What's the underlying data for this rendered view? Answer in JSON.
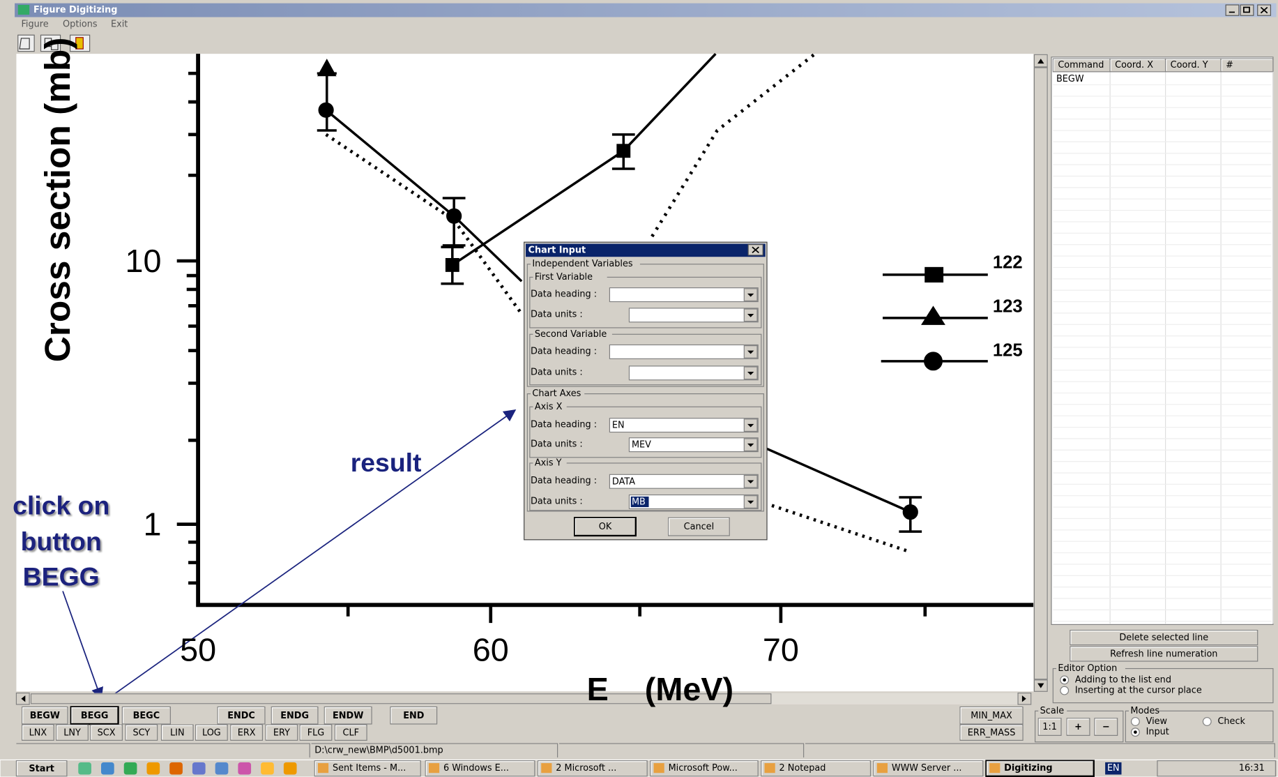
{
  "window": {
    "title": "Figure Digitizing",
    "menu": [
      "Figure",
      "Options",
      "Exit"
    ]
  },
  "figure": {
    "y_label": "Cross section (mb)",
    "y_ticks": [
      "10",
      "1"
    ],
    "x_ticks": [
      "50",
      "60",
      "70"
    ],
    "x_label": "E    (MeV)",
    "legend": [
      "122",
      "123",
      "125"
    ]
  },
  "annotations": {
    "result": "result",
    "click": [
      "click on",
      "button",
      "BEGG"
    ]
  },
  "dialog": {
    "title": "Chart Input",
    "independent": "Independent Variables",
    "first": "First Variable",
    "second": "Second Variable",
    "axes": "Chart Axes",
    "axis_x": "Axis X",
    "axis_y": "Axis Y",
    "heading_label": "Data heading :",
    "units_label": "Data units :",
    "x_heading": "EN",
    "x_units": "MEV",
    "y_heading": "DATA",
    "y_units": "MB",
    "ok": "OK",
    "cancel": "Cancel"
  },
  "table": {
    "columns": [
      "Command",
      "Coord. X",
      "Coord. Y",
      "#"
    ],
    "rows": [
      [
        "BEGW"
      ]
    ]
  },
  "side_buttons": [
    "Delete selected line",
    "Refresh line numeration"
  ],
  "editor_option": {
    "title": "Editor Option",
    "options": [
      "Adding to the list end",
      "Inserting at the cursor place"
    ]
  },
  "scale": {
    "title": "Scale",
    "buttons": [
      "1:1",
      "+",
      "−"
    ]
  },
  "modes": {
    "title": "Modes",
    "options": [
      "View",
      "Check",
      "Input"
    ]
  },
  "toolbar_row1": [
    "BEGW",
    "BEGG",
    "BEGC",
    "ENDC",
    "ENDG",
    "ENDW",
    "END"
  ],
  "toolbar_row2": [
    "LNX",
    "LNY",
    "SCX",
    "SCY",
    "LIN",
    "LOG",
    "ERX",
    "ERY",
    "FLG",
    "CLF"
  ],
  "right_buttons": [
    "MIN_MAX",
    "ERR_MASS"
  ],
  "status": "D:\\crw_new\\BMP\\d5001.bmp",
  "taskbar": {
    "start": "Start",
    "tasks": [
      "Sent Items - M...",
      "6 Windows E...",
      "2 Microsoft ...",
      "Microsoft Pow...",
      "2 Notepad",
      "WWW Server ...",
      "Digitizing"
    ],
    "lang": "EN",
    "clock": "16:31"
  }
}
